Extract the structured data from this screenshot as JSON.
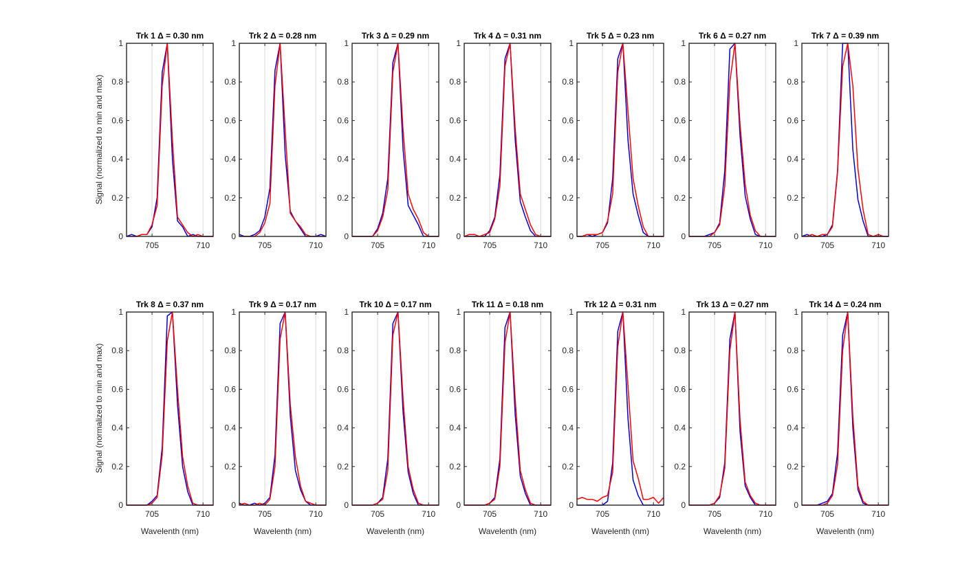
{
  "figure": {
    "ylabel": "Signal (normalized to min and max)",
    "xlabel": "Wavelenth (nm)"
  },
  "chart_data": {
    "type": "line",
    "grid_x": true,
    "grid_y": false,
    "xlim": [
      702.5,
      711
    ],
    "ylim": [
      0,
      1
    ],
    "xticks": [
      705,
      710
    ],
    "yticks": [
      0,
      0.2,
      0.4,
      0.6,
      0.8,
      1
    ],
    "ytick_labels": [
      "0",
      "0.2",
      "0.4",
      "0.6",
      "0.8",
      "1"
    ],
    "colors": {
      "series_a": "#0000d4",
      "series_b": "#ff0000",
      "axes": "#262626",
      "grid": "#d9d9d9"
    },
    "x": [
      702.5,
      703.0,
      703.5,
      704.0,
      704.5,
      705.0,
      705.5,
      706.0,
      706.5,
      707.0,
      707.5,
      708.0,
      708.5,
      709.0,
      709.5,
      710.0,
      710.5,
      711.0
    ],
    "panels": [
      {
        "title": "Trk 1 Δ = 0.30 nm",
        "series_a": [
          0.0,
          0.01,
          0.0,
          0.01,
          0.01,
          0.05,
          0.2,
          0.85,
          1.0,
          0.4,
          0.08,
          0.05,
          0.0,
          0.01,
          0.0,
          0.0,
          0.0,
          0.0
        ],
        "series_b": [
          0.0,
          0.0,
          0.0,
          0.01,
          0.01,
          0.06,
          0.16,
          0.78,
          1.0,
          0.5,
          0.1,
          0.06,
          0.02,
          0.0,
          0.01,
          0.0,
          0.0,
          0.0
        ]
      },
      {
        "title": "Trk 2 Δ = 0.28 nm",
        "series_a": [
          0.01,
          0.0,
          0.0,
          0.01,
          0.03,
          0.1,
          0.25,
          0.86,
          1.0,
          0.42,
          0.13,
          0.08,
          0.04,
          0.0,
          0.0,
          0.0,
          0.01,
          0.0
        ],
        "series_b": [
          0.0,
          0.0,
          0.0,
          0.0,
          0.02,
          0.07,
          0.17,
          0.78,
          1.0,
          0.55,
          0.12,
          0.08,
          0.05,
          0.01,
          0.0,
          0.0,
          0.0,
          0.0
        ]
      },
      {
        "title": "Trk 3 Δ = 0.29 nm",
        "series_a": [
          0.0,
          0.0,
          0.0,
          0.0,
          0.0,
          0.04,
          0.12,
          0.3,
          0.9,
          1.0,
          0.45,
          0.16,
          0.11,
          0.06,
          0.0,
          0.0,
          0.0,
          0.0
        ],
        "series_b": [
          0.0,
          0.0,
          0.0,
          0.0,
          0.0,
          0.03,
          0.1,
          0.24,
          0.85,
          1.0,
          0.55,
          0.22,
          0.14,
          0.09,
          0.02,
          0.0,
          0.0,
          0.0
        ]
      },
      {
        "title": "Trk 4 Δ = 0.31 nm",
        "series_a": [
          0.0,
          0.0,
          0.0,
          0.0,
          0.0,
          0.03,
          0.1,
          0.32,
          0.92,
          1.0,
          0.5,
          0.18,
          0.1,
          0.03,
          0.0,
          0.0,
          0.0,
          0.0
        ],
        "series_b": [
          0.0,
          0.01,
          0.01,
          0.0,
          0.01,
          0.02,
          0.09,
          0.26,
          0.88,
          1.0,
          0.56,
          0.22,
          0.14,
          0.06,
          0.01,
          0.0,
          0.0,
          0.0
        ]
      },
      {
        "title": "Trk 5 Δ = 0.23 nm",
        "series_a": [
          0.0,
          0.0,
          0.01,
          0.0,
          0.01,
          0.02,
          0.07,
          0.3,
          0.92,
          1.0,
          0.5,
          0.22,
          0.11,
          0.02,
          0.0,
          0.0,
          0.0,
          0.0
        ],
        "series_b": [
          0.0,
          0.0,
          0.01,
          0.01,
          0.01,
          0.02,
          0.08,
          0.22,
          0.85,
          1.0,
          0.65,
          0.3,
          0.16,
          0.05,
          0.0,
          0.0,
          0.0,
          0.0
        ]
      },
      {
        "title": "Trk 6 Δ = 0.27 nm",
        "series_a": [
          0.0,
          0.0,
          0.0,
          0.0,
          0.01,
          0.02,
          0.07,
          0.34,
          0.97,
          1.0,
          0.52,
          0.21,
          0.09,
          0.01,
          0.0,
          0.0,
          0.0,
          0.0
        ],
        "series_b": [
          0.0,
          0.0,
          0.0,
          0.0,
          0.0,
          0.02,
          0.06,
          0.26,
          0.8,
          1.0,
          0.58,
          0.27,
          0.11,
          0.03,
          0.0,
          0.0,
          0.0,
          0.0
        ]
      },
      {
        "title": "Trk 7 Δ = 0.39 nm",
        "series_a": [
          0.0,
          0.01,
          0.0,
          0.0,
          0.0,
          0.01,
          0.06,
          0.34,
          1.0,
          1.0,
          0.45,
          0.19,
          0.08,
          0.0,
          0.0,
          0.0,
          0.0,
          0.0
        ],
        "series_b": [
          0.0,
          0.0,
          0.01,
          0.0,
          0.01,
          0.01,
          0.05,
          0.33,
          0.88,
          1.0,
          0.78,
          0.35,
          0.14,
          0.01,
          0.0,
          0.01,
          0.0,
          0.0
        ]
      },
      {
        "title": "Trk 8 Δ = 0.37 nm",
        "series_a": [
          0.0,
          0.0,
          0.0,
          0.0,
          0.0,
          0.02,
          0.05,
          0.3,
          0.98,
          1.0,
          0.52,
          0.2,
          0.07,
          0.0,
          0.0,
          0.0,
          0.0,
          0.0
        ],
        "series_b": [
          0.0,
          0.0,
          0.0,
          0.0,
          0.0,
          0.01,
          0.04,
          0.26,
          0.85,
          1.0,
          0.6,
          0.25,
          0.1,
          0.01,
          0.0,
          0.0,
          0.0,
          0.0
        ]
      },
      {
        "title": "Trk 9 Δ = 0.17 nm",
        "series_a": [
          0.01,
          0.0,
          0.0,
          0.01,
          0.0,
          0.01,
          0.04,
          0.26,
          0.94,
          1.0,
          0.46,
          0.18,
          0.08,
          0.02,
          0.0,
          0.0,
          0.0,
          0.0
        ],
        "series_b": [
          0.0,
          0.01,
          0.0,
          0.0,
          0.01,
          0.0,
          0.03,
          0.2,
          0.86,
          1.0,
          0.52,
          0.25,
          0.1,
          0.02,
          0.01,
          0.0,
          0.0,
          0.0
        ]
      },
      {
        "title": "Trk 10 Δ = 0.17 nm",
        "series_a": [
          0.0,
          0.0,
          0.0,
          0.0,
          0.0,
          0.01,
          0.04,
          0.24,
          0.94,
          1.0,
          0.48,
          0.17,
          0.06,
          0.0,
          0.0,
          0.0,
          0.0,
          0.0
        ],
        "series_b": [
          0.0,
          0.0,
          0.0,
          0.0,
          0.0,
          0.01,
          0.03,
          0.18,
          0.88,
          1.0,
          0.55,
          0.2,
          0.08,
          0.01,
          0.0,
          0.0,
          0.0,
          0.0
        ]
      },
      {
        "title": "Trk 11 Δ = 0.18 nm",
        "series_a": [
          0.0,
          0.0,
          0.0,
          0.0,
          0.0,
          0.01,
          0.04,
          0.24,
          0.92,
          1.0,
          0.47,
          0.15,
          0.06,
          0.0,
          0.0,
          0.0,
          0.0,
          0.0
        ],
        "series_b": [
          0.0,
          0.0,
          0.0,
          0.0,
          0.0,
          0.01,
          0.03,
          0.2,
          0.84,
          1.0,
          0.55,
          0.18,
          0.08,
          0.01,
          0.0,
          0.0,
          0.0,
          0.0
        ]
      },
      {
        "title": "Trk 12 Δ = 0.31 nm",
        "series_a": [
          0.0,
          0.0,
          0.0,
          0.0,
          0.0,
          0.0,
          0.02,
          0.22,
          0.9,
          1.0,
          0.45,
          0.13,
          0.05,
          0.0,
          0.0,
          0.0,
          0.0,
          0.0
        ],
        "series_b": [
          0.03,
          0.04,
          0.03,
          0.03,
          0.02,
          0.04,
          0.05,
          0.17,
          0.82,
          1.0,
          0.62,
          0.23,
          0.14,
          0.03,
          0.03,
          0.04,
          0.01,
          0.04
        ]
      },
      {
        "title": "Trk 13 Δ = 0.27 nm",
        "series_a": [
          0.0,
          0.0,
          0.0,
          0.0,
          0.0,
          0.01,
          0.04,
          0.22,
          0.86,
          1.0,
          0.38,
          0.1,
          0.04,
          0.0,
          0.0,
          0.0,
          0.0,
          0.0
        ],
        "series_b": [
          0.0,
          0.0,
          0.0,
          0.0,
          0.0,
          0.01,
          0.05,
          0.19,
          0.8,
          1.0,
          0.44,
          0.12,
          0.05,
          0.01,
          0.0,
          0.0,
          0.0,
          0.0
        ]
      },
      {
        "title": "Trk 14 Δ = 0.24 nm",
        "series_a": [
          0.0,
          0.0,
          0.0,
          0.0,
          0.01,
          0.02,
          0.06,
          0.27,
          0.88,
          1.0,
          0.4,
          0.08,
          0.01,
          0.0,
          0.0,
          0.0,
          0.0,
          0.0
        ],
        "series_b": [
          0.0,
          0.0,
          0.0,
          0.0,
          0.0,
          0.01,
          0.05,
          0.21,
          0.8,
          1.0,
          0.46,
          0.1,
          0.02,
          0.0,
          0.0,
          0.0,
          0.0,
          0.0
        ]
      }
    ]
  }
}
